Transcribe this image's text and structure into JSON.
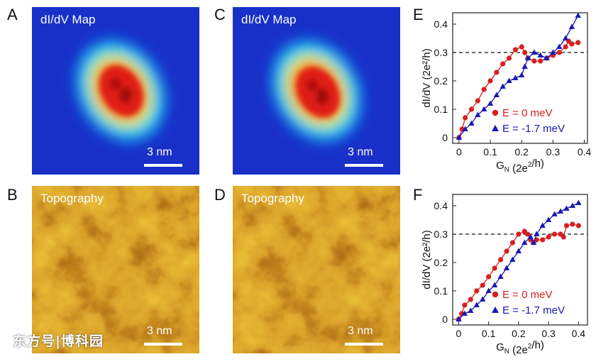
{
  "panels": {
    "A": {
      "letter": "A",
      "title": "dI/dV Map",
      "scale": "3 nm"
    },
    "B": {
      "letter": "B",
      "title": "Topography",
      "scale": "3 nm"
    },
    "C": {
      "letter": "C",
      "title": "dI/dV  Map",
      "scale": "3 nm"
    },
    "D": {
      "letter": "D",
      "title": "Topography",
      "scale": "3 nm"
    }
  },
  "watermark": "东方号|博科园",
  "colors": {
    "red": "#d62020",
    "blue": "#1a1ab4",
    "map_bg": "#1830c8"
  },
  "chart_data": [
    {
      "panel": "E",
      "type": "line",
      "xlabel_main": "G",
      "xlabel_sub": "N",
      "xlabel_rest": " (2e",
      "xlabel_sup": "2",
      "xlabel_end": "/h)",
      "ylabel": "dI/dV (2e²/h)",
      "xlim": [
        -0.02,
        0.41
      ],
      "ylim": [
        -0.02,
        0.44
      ],
      "xticks": [
        "0",
        "0.1",
        "0.2",
        "0.3",
        "0.4"
      ],
      "xtick_values": [
        0,
        0.1,
        0.2,
        0.3,
        0.4
      ],
      "yticks": [
        "0",
        "0.1",
        "0.2",
        "0.3",
        "0.4"
      ],
      "ytick_values": [
        0,
        0.1,
        0.2,
        0.3,
        0.4
      ],
      "reference_line": 0.3,
      "series": [
        {
          "name": "E =  0 meV",
          "marker": "circle",
          "color": "#d62020",
          "x": [
            0,
            0.01,
            0.02,
            0.04,
            0.06,
            0.08,
            0.1,
            0.12,
            0.14,
            0.16,
            0.18,
            0.2,
            0.21,
            0.22,
            0.24,
            0.26,
            0.28,
            0.3,
            0.32,
            0.34,
            0.35,
            0.36,
            0.38
          ],
          "y": [
            0,
            0.03,
            0.07,
            0.1,
            0.13,
            0.17,
            0.2,
            0.23,
            0.26,
            0.28,
            0.31,
            0.32,
            0.3,
            0.28,
            0.27,
            0.27,
            0.28,
            0.29,
            0.3,
            0.32,
            0.34,
            0.33,
            0.335
          ]
        },
        {
          "name": "E = -1.7 meV",
          "marker": "triangle",
          "color": "#1a1ab4",
          "x": [
            0,
            0.02,
            0.04,
            0.06,
            0.08,
            0.1,
            0.12,
            0.14,
            0.16,
            0.18,
            0.2,
            0.21,
            0.22,
            0.24,
            0.26,
            0.28,
            0.3,
            0.32,
            0.34,
            0.36,
            0.38
          ],
          "y": [
            0,
            0.03,
            0.05,
            0.08,
            0.1,
            0.12,
            0.15,
            0.18,
            0.2,
            0.21,
            0.22,
            0.25,
            0.28,
            0.3,
            0.29,
            0.28,
            0.3,
            0.32,
            0.35,
            0.39,
            0.43
          ]
        }
      ]
    },
    {
      "panel": "F",
      "type": "line",
      "xlabel_main": "G",
      "xlabel_sub": "N",
      "xlabel_rest": " (2e",
      "xlabel_sup": "2",
      "xlabel_end": "/h)",
      "ylabel": "dI/dV (2e²/h)",
      "xlim": [
        -0.02,
        0.43
      ],
      "ylim": [
        -0.02,
        0.44
      ],
      "xticks": [
        "0",
        "0.1",
        "0.2",
        "0.3",
        "0.4"
      ],
      "xtick_values": [
        0,
        0.1,
        0.2,
        0.3,
        0.4
      ],
      "yticks": [
        "0",
        "0.1",
        "0.2",
        "0.3",
        "0.4"
      ],
      "ytick_values": [
        0,
        0.1,
        0.2,
        0.3,
        0.4
      ],
      "reference_line": 0.3,
      "series": [
        {
          "name": "E =  0 meV",
          "marker": "circle",
          "color": "#d62020",
          "x": [
            0,
            0.01,
            0.02,
            0.04,
            0.06,
            0.08,
            0.1,
            0.12,
            0.14,
            0.16,
            0.18,
            0.2,
            0.22,
            0.23,
            0.24,
            0.25,
            0.26,
            0.28,
            0.3,
            0.32,
            0.34,
            0.35,
            0.36,
            0.38,
            0.4
          ],
          "y": [
            0,
            0.02,
            0.05,
            0.07,
            0.1,
            0.12,
            0.15,
            0.18,
            0.21,
            0.24,
            0.27,
            0.3,
            0.31,
            0.3,
            0.28,
            0.27,
            0.28,
            0.28,
            0.29,
            0.3,
            0.3,
            0.29,
            0.33,
            0.335,
            0.33
          ]
        },
        {
          "name": "E = -1.7 meV",
          "marker": "triangle",
          "color": "#1a1ab4",
          "x": [
            0,
            0.02,
            0.04,
            0.06,
            0.08,
            0.1,
            0.12,
            0.14,
            0.16,
            0.18,
            0.2,
            0.22,
            0.24,
            0.25,
            0.26,
            0.28,
            0.3,
            0.32,
            0.34,
            0.36,
            0.38,
            0.4
          ],
          "y": [
            0,
            0.02,
            0.03,
            0.05,
            0.07,
            0.1,
            0.12,
            0.15,
            0.18,
            0.21,
            0.24,
            0.27,
            0.29,
            0.27,
            0.3,
            0.33,
            0.35,
            0.37,
            0.38,
            0.39,
            0.4,
            0.41
          ]
        }
      ]
    }
  ]
}
